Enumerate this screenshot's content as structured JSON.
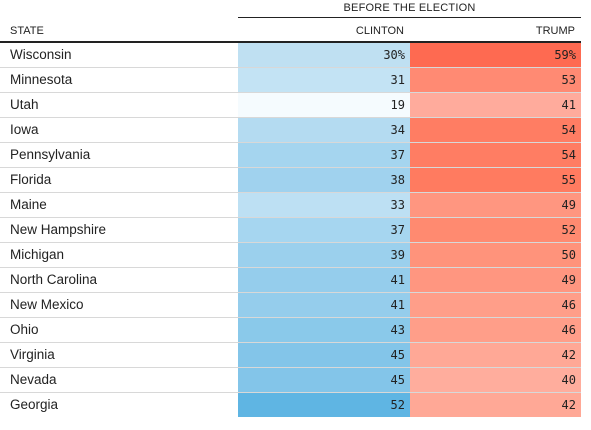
{
  "table": {
    "super_header": "BEFORE THE ELECTION",
    "columns": {
      "state": "STATE",
      "clinton": "CLINTON",
      "trump": "TRUMP"
    },
    "rows": [
      {
        "state": "Wisconsin",
        "clinton": "30%",
        "trump": "59%",
        "clinton_color": "#bfe0f2",
        "trump_color": "#fe6a51"
      },
      {
        "state": "Minnesota",
        "clinton": "31",
        "trump": "53",
        "clinton_color": "#c3e3f4",
        "trump_color": "#ff8a73"
      },
      {
        "state": "Utah",
        "clinton": "19",
        "trump": "41",
        "clinton_color": "#f5fbfe",
        "trump_color": "#ffab9c"
      },
      {
        "state": "Iowa",
        "clinton": "34",
        "trump": "54",
        "clinton_color": "#b4dbf1",
        "trump_color": "#ff7d63"
      },
      {
        "state": "Pennsylvania",
        "clinton": "37",
        "trump": "54",
        "clinton_color": "#a5d5ef",
        "trump_color": "#ff7d63"
      },
      {
        "state": "Florida",
        "clinton": "38",
        "trump": "55",
        "clinton_color": "#a0d2ee",
        "trump_color": "#ff7b60"
      },
      {
        "state": "Maine",
        "clinton": "33",
        "trump": "49",
        "clinton_color": "#bde0f3",
        "trump_color": "#ff9680"
      },
      {
        "state": "New Hampshire",
        "clinton": "37",
        "trump": "52",
        "clinton_color": "#a6d6f0",
        "trump_color": "#ff8a70"
      },
      {
        "state": "Michigan",
        "clinton": "39",
        "trump": "50",
        "clinton_color": "#9bd0ed",
        "trump_color": "#ff937b"
      },
      {
        "state": "North Carolina",
        "clinton": "41",
        "trump": "49",
        "clinton_color": "#95cdec",
        "trump_color": "#ff9680"
      },
      {
        "state": "New Mexico",
        "clinton": "41",
        "trump": "46",
        "clinton_color": "#95cdec",
        "trump_color": "#ff9e89"
      },
      {
        "state": "Ohio",
        "clinton": "43",
        "trump": "46",
        "clinton_color": "#8ac9ea",
        "trump_color": "#ff9e89"
      },
      {
        "state": "Virginia",
        "clinton": "45",
        "trump": "42",
        "clinton_color": "#83c5e9",
        "trump_color": "#ffa896"
      },
      {
        "state": "Nevada",
        "clinton": "45",
        "trump": "40",
        "clinton_color": "#83c5e9",
        "trump_color": "#ffad9d"
      },
      {
        "state": "Georgia",
        "clinton": "52",
        "trump": "42",
        "clinton_color": "#5fb5e3",
        "trump_color": "#ffa896"
      }
    ]
  }
}
